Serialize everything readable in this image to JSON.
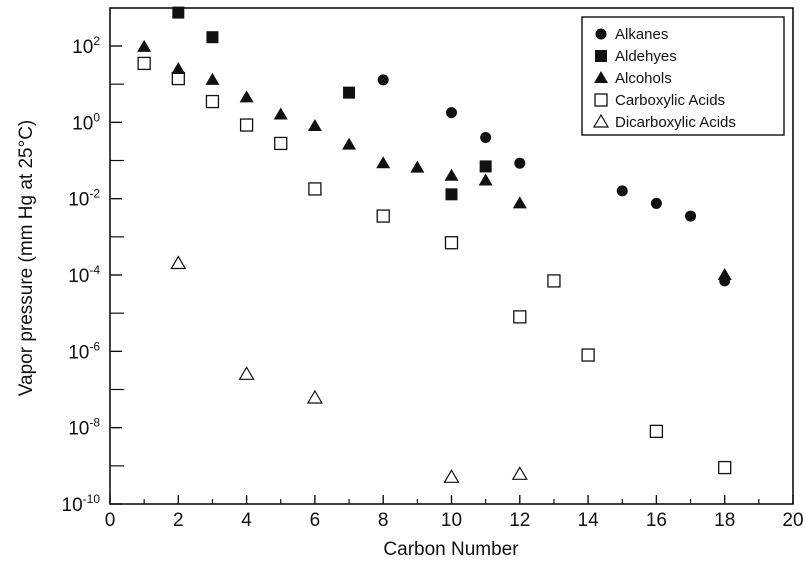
{
  "chart_data": {
    "type": "scatter",
    "xlabel": "Carbon Number",
    "ylabel": "Vapor pressure (mm Hg at 25°C)",
    "xlim": [
      0,
      20
    ],
    "ylim": [
      1e-10,
      1000
    ],
    "yscale": "log",
    "x_ticks": [
      "0",
      "2",
      "4",
      "6",
      "8",
      "10",
      "12",
      "14",
      "16",
      "18",
      "20"
    ],
    "y_ticks": [
      {
        "base": "10",
        "exp": "2",
        "value": 100
      },
      {
        "base": "10",
        "exp": "0",
        "value": 1
      },
      {
        "base": "10",
        "exp": "-2",
        "value": 0.01
      },
      {
        "base": "10",
        "exp": "-4",
        "value": 0.0001
      },
      {
        "base": "10",
        "exp": "-6",
        "value": 1e-06
      },
      {
        "base": "10",
        "exp": "-8",
        "value": 1e-08
      },
      {
        "base": "10",
        "exp": "-10",
        "value": 1e-10
      }
    ],
    "grid": false,
    "legend_position": "top-right",
    "series": [
      {
        "name": "Alkanes",
        "marker": "filled-circle",
        "x": [
          8,
          10,
          11,
          12,
          15,
          16,
          17,
          18
        ],
        "y": [
          13,
          1.8,
          0.4,
          0.085,
          0.016,
          0.0075,
          0.0035,
          7e-05
        ]
      },
      {
        "name": "Aldehyes",
        "marker": "filled-square",
        "x": [
          2,
          3,
          7,
          10,
          11
        ],
        "y": [
          750,
          170,
          6,
          0.013,
          0.07
        ]
      },
      {
        "name": "Alcohols",
        "marker": "filled-triangle",
        "x": [
          1,
          2,
          3,
          4,
          5,
          6,
          7,
          8,
          9,
          10,
          11,
          12,
          18
        ],
        "y": [
          95,
          25,
          13,
          4.5,
          1.6,
          0.8,
          0.26,
          0.085,
          0.065,
          0.04,
          0.03,
          0.0075,
          0.0001
        ]
      },
      {
        "name": "Carboxylic Acids",
        "marker": "open-square",
        "x": [
          1,
          2,
          3,
          4,
          5,
          6,
          8,
          10,
          12,
          13,
          14,
          16,
          18
        ],
        "y": [
          35,
          14,
          3.5,
          0.85,
          0.28,
          0.018,
          0.0035,
          0.0007,
          8e-06,
          7e-05,
          8e-07,
          8e-09,
          9e-10
        ]
      },
      {
        "name": "Dicarboxylic Acids",
        "marker": "open-triangle",
        "x": [
          2,
          4,
          6,
          10,
          12
        ],
        "y": [
          0.0002,
          2.5e-07,
          6e-08,
          5e-10,
          6e-10
        ]
      }
    ]
  }
}
